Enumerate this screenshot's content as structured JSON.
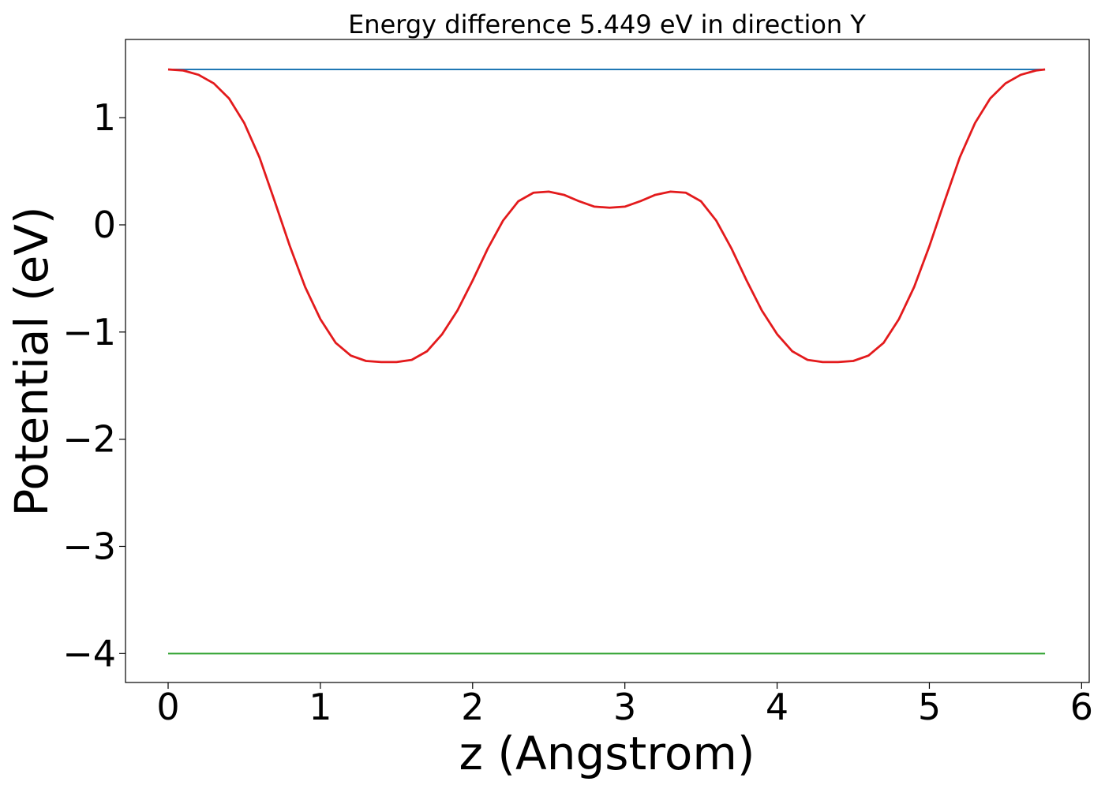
{
  "chart_data": {
    "type": "line",
    "title": "Energy difference 5.449 eV in direction Y",
    "xlabel": "z (Angstrom)",
    "ylabel": "Potential (eV)",
    "xlim": [
      -0.28,
      6.05
    ],
    "ylim": [
      -4.27,
      1.73
    ],
    "x_ticks": [
      0,
      1,
      2,
      3,
      4,
      5,
      6
    ],
    "x_tick_labels": [
      "0",
      "1",
      "2",
      "3",
      "4",
      "5",
      "6"
    ],
    "y_ticks": [
      1,
      0,
      -1,
      -2,
      -3,
      -4
    ],
    "y_tick_labels": [
      "1",
      "0",
      "−1",
      "−2",
      "−3",
      "−4"
    ],
    "grid": false,
    "series": [
      {
        "color": "#1f77b4",
        "x": [
          0,
          5.76
        ],
        "y": [
          1.45,
          1.45
        ]
      },
      {
        "color": "#2ca02c",
        "x": [
          0,
          5.76
        ],
        "y": [
          -4.0,
          -4.0
        ]
      },
      {
        "color": "#e31a1c",
        "x": [
          0.0,
          0.1,
          0.2,
          0.3,
          0.4,
          0.5,
          0.6,
          0.7,
          0.8,
          0.9,
          1.0,
          1.1,
          1.2,
          1.3,
          1.4,
          1.5,
          1.6,
          1.7,
          1.8,
          1.9,
          2.0,
          2.1,
          2.2,
          2.3,
          2.4,
          2.5,
          2.6,
          2.7,
          2.8,
          2.9,
          3.0,
          3.1,
          3.2,
          3.3,
          3.4,
          3.5,
          3.6,
          3.7,
          3.8,
          3.9,
          4.0,
          4.1,
          4.2,
          4.3,
          4.4,
          4.5,
          4.6,
          4.7,
          4.8,
          4.9,
          5.0,
          5.1,
          5.2,
          5.3,
          5.4,
          5.5,
          5.6,
          5.7,
          5.76
        ],
        "y": [
          1.45,
          1.44,
          1.4,
          1.32,
          1.18,
          0.95,
          0.63,
          0.22,
          -0.2,
          -0.58,
          -0.88,
          -1.1,
          -1.22,
          -1.27,
          -1.28,
          -1.28,
          -1.26,
          -1.18,
          -1.02,
          -0.8,
          -0.52,
          -0.22,
          0.04,
          0.22,
          0.3,
          0.31,
          0.28,
          0.22,
          0.17,
          0.16,
          0.17,
          0.22,
          0.28,
          0.31,
          0.3,
          0.22,
          0.04,
          -0.22,
          -0.52,
          -0.8,
          -1.02,
          -1.18,
          -1.26,
          -1.28,
          -1.28,
          -1.27,
          -1.22,
          -1.1,
          -0.88,
          -0.58,
          -0.2,
          0.22,
          0.63,
          0.95,
          1.18,
          1.32,
          1.4,
          1.44,
          1.45
        ]
      }
    ]
  }
}
